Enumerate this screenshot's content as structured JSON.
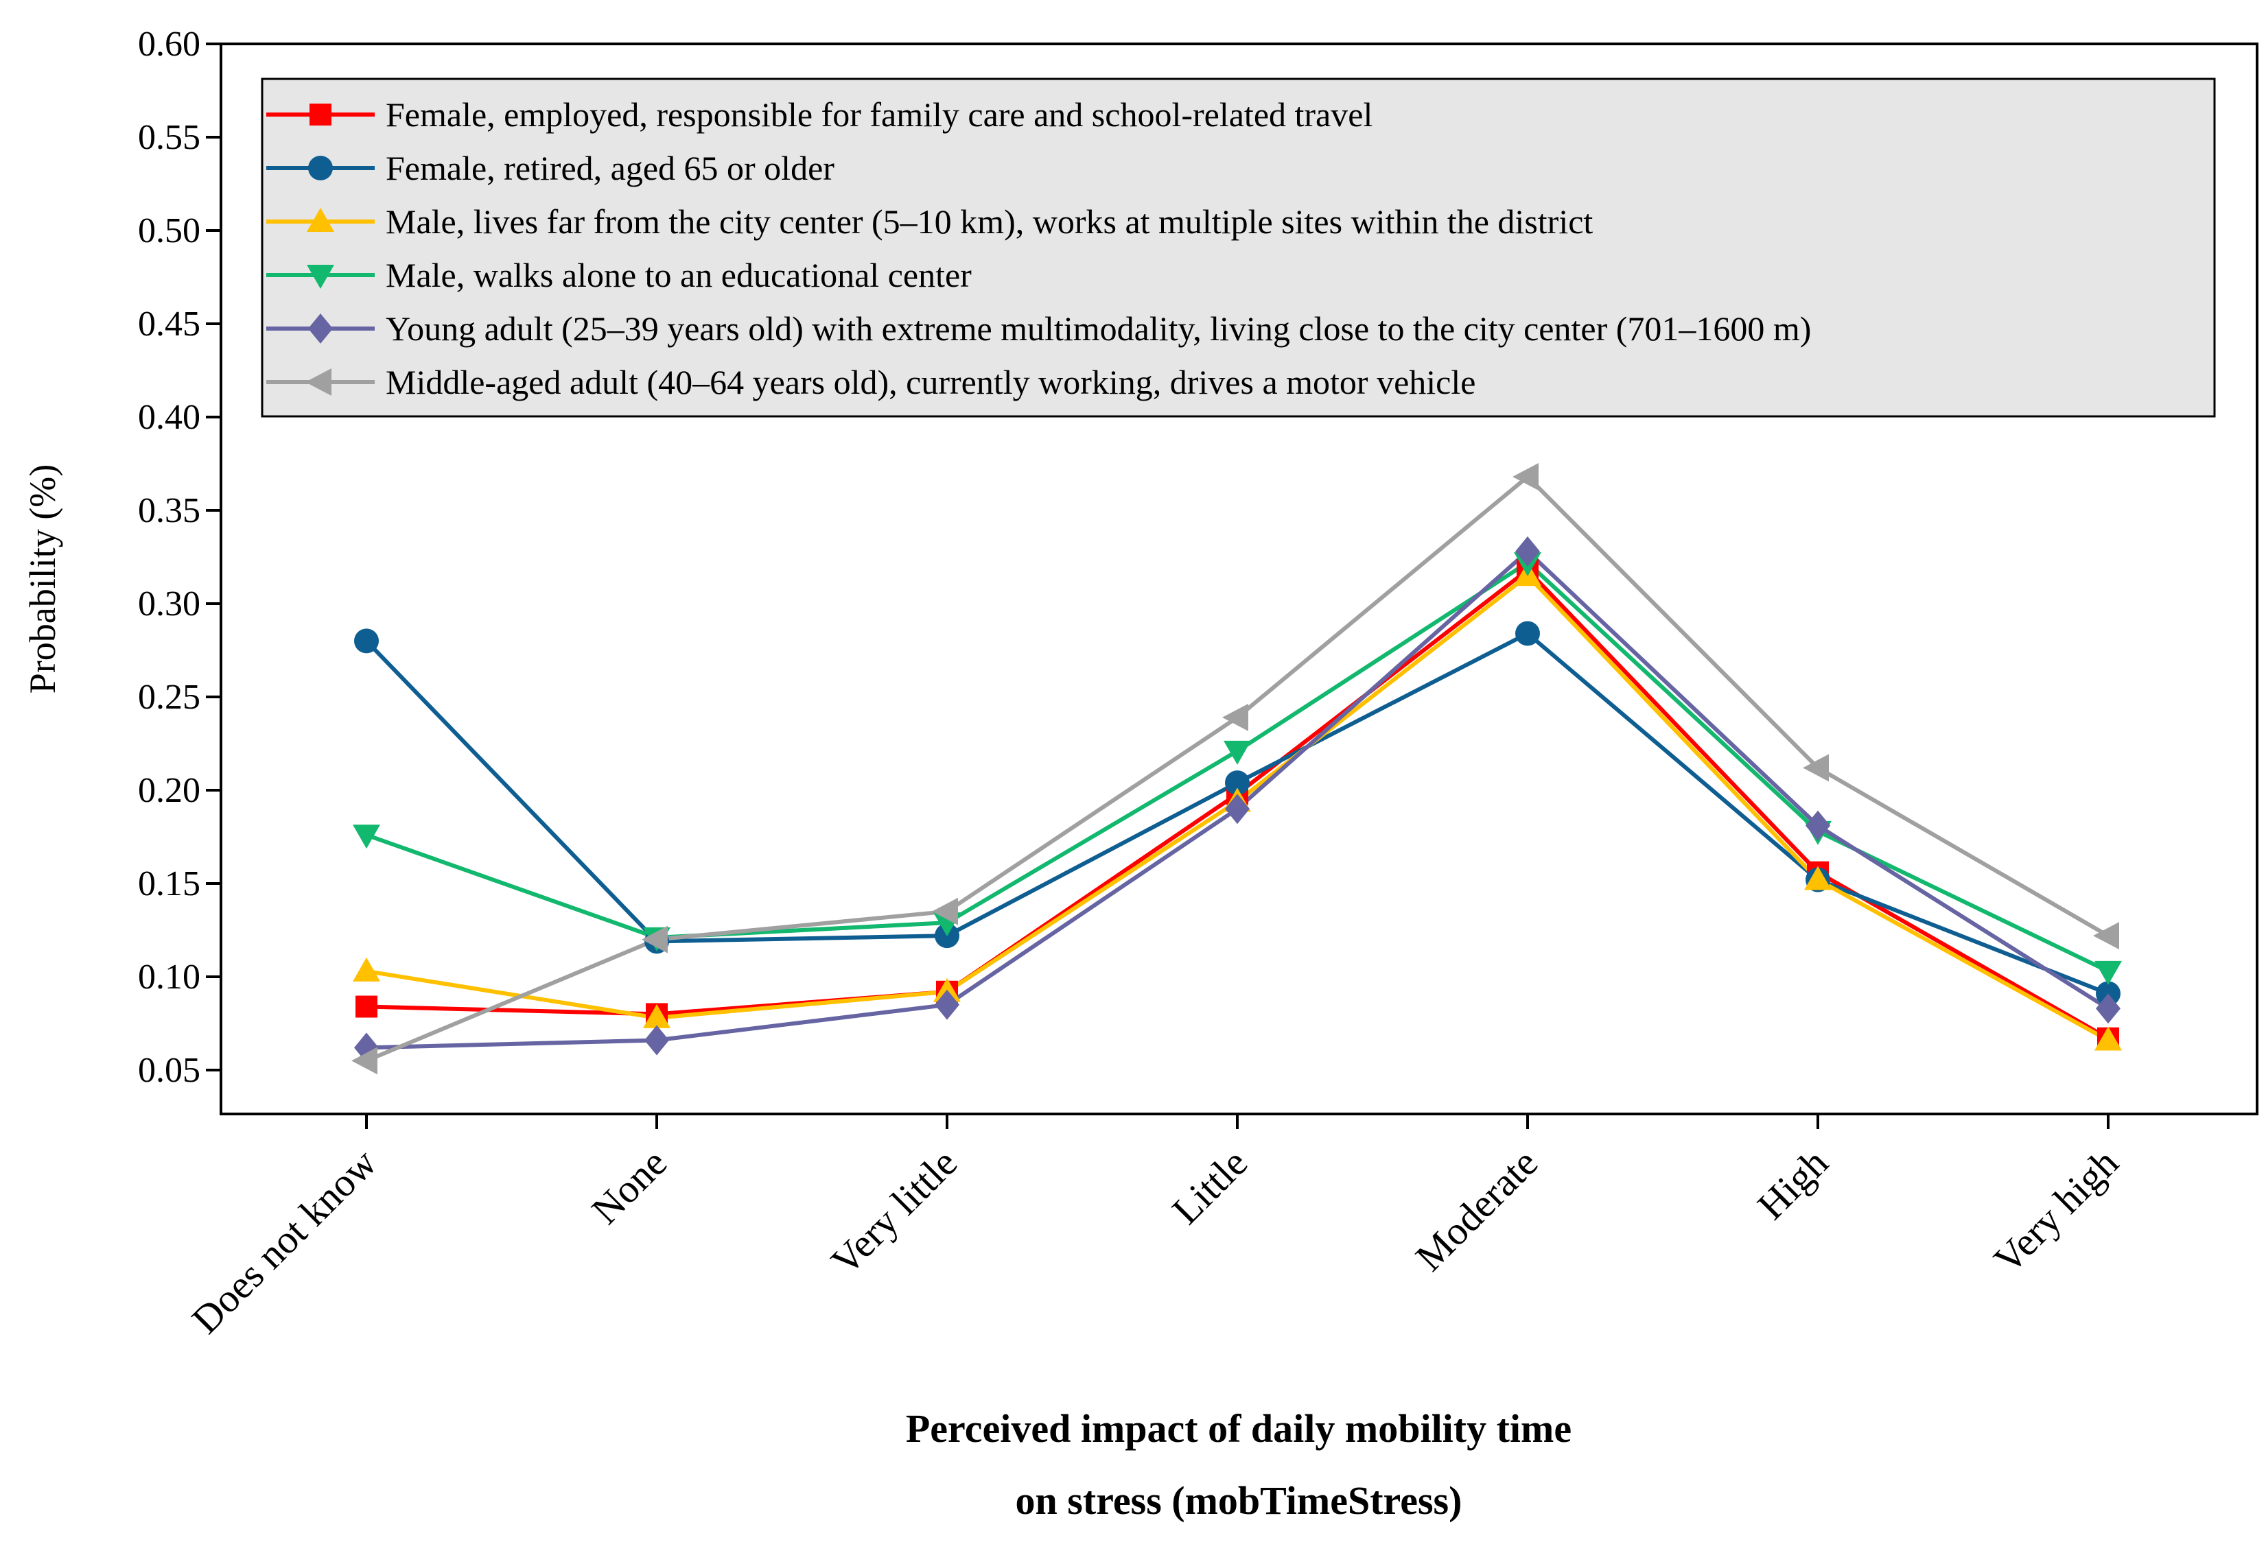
{
  "chart_data": {
    "type": "line",
    "title": "",
    "xlabel": [
      "Perceived impact of daily mobility time",
      "on stress (mobTimeStress)"
    ],
    "ylabel": "Probability (%)",
    "ylim": [
      0.02,
      0.6
    ],
    "yticks": [
      0.05,
      0.1,
      0.15,
      0.2,
      0.25,
      0.3,
      0.35,
      0.4,
      0.45,
      0.5,
      0.55,
      0.6
    ],
    "ytick_labels": [
      "0.05",
      "0.10",
      "0.15",
      "0.20",
      "0.25",
      "0.30",
      "0.35",
      "0.40",
      "0.45",
      "0.50",
      "0.55",
      "0.60"
    ],
    "categories": [
      "Does not know",
      "None",
      "Very little",
      "Little",
      "Moderate",
      "High",
      "Very high"
    ],
    "legend_position": "top",
    "grid": false,
    "series": [
      {
        "name": "Female, employed, responsible for family care and school-related travel",
        "color": "#ff0000",
        "marker": "square",
        "values": [
          0.084,
          0.08,
          0.092,
          0.198,
          0.318,
          0.156,
          0.067
        ]
      },
      {
        "name": "Female, retired, aged 65 or older",
        "color": "#0e5e92",
        "marker": "circle",
        "values": [
          0.28,
          0.119,
          0.122,
          0.204,
          0.284,
          0.152,
          0.091
        ]
      },
      {
        "name": "Male, lives far from the city center (5–10 km), works at multiple sites within the district",
        "color": "#ffc000",
        "marker": "triangle-up",
        "values": [
          0.103,
          0.078,
          0.092,
          0.194,
          0.315,
          0.152,
          0.066
        ]
      },
      {
        "name": "Male, walks alone to an educational center",
        "color": "#12b86e",
        "marker": "triangle-down",
        "values": [
          0.176,
          0.121,
          0.129,
          0.221,
          0.322,
          0.178,
          0.103
        ]
      },
      {
        "name": "Young adult (25–39 years old) with extreme multimodality, living close to the city center (701–1600 m)",
        "color": "#6664a2",
        "marker": "diamond",
        "values": [
          0.062,
          0.066,
          0.085,
          0.19,
          0.328,
          0.181,
          0.083
        ]
      },
      {
        "name": "Middle-aged adult (40–64 years old), currently working, drives a motor vehicle",
        "color": "#a0a0a0",
        "marker": "triangle-left",
        "values": [
          0.055,
          0.12,
          0.135,
          0.239,
          0.368,
          0.212,
          0.122
        ]
      }
    ]
  }
}
